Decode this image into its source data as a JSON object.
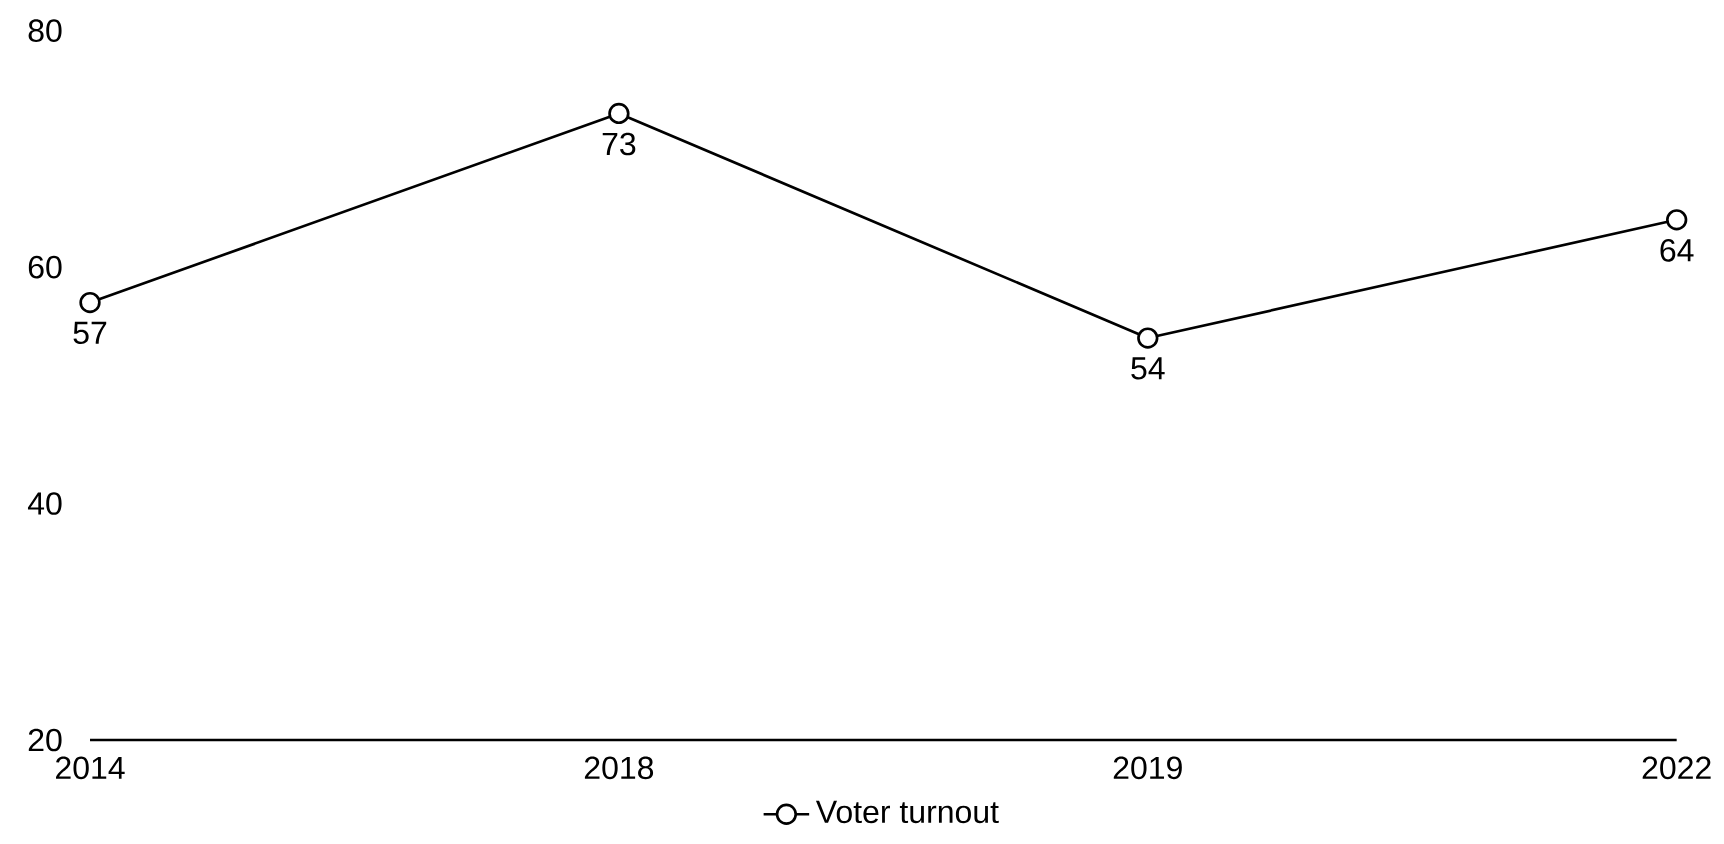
{
  "chart_data": {
    "type": "line",
    "categories": [
      "2014",
      "2018",
      "2019",
      "2022"
    ],
    "series": [
      {
        "name": "Voter turnout",
        "color": "#000000",
        "values": [
          57,
          73,
          54,
          64
        ]
      }
    ],
    "ylim": [
      20,
      80
    ],
    "yticks": [
      20,
      40,
      60,
      80
    ],
    "data_labels": true,
    "marker": "circle",
    "line_style": "solid",
    "grid": false,
    "legend": "bottom"
  }
}
